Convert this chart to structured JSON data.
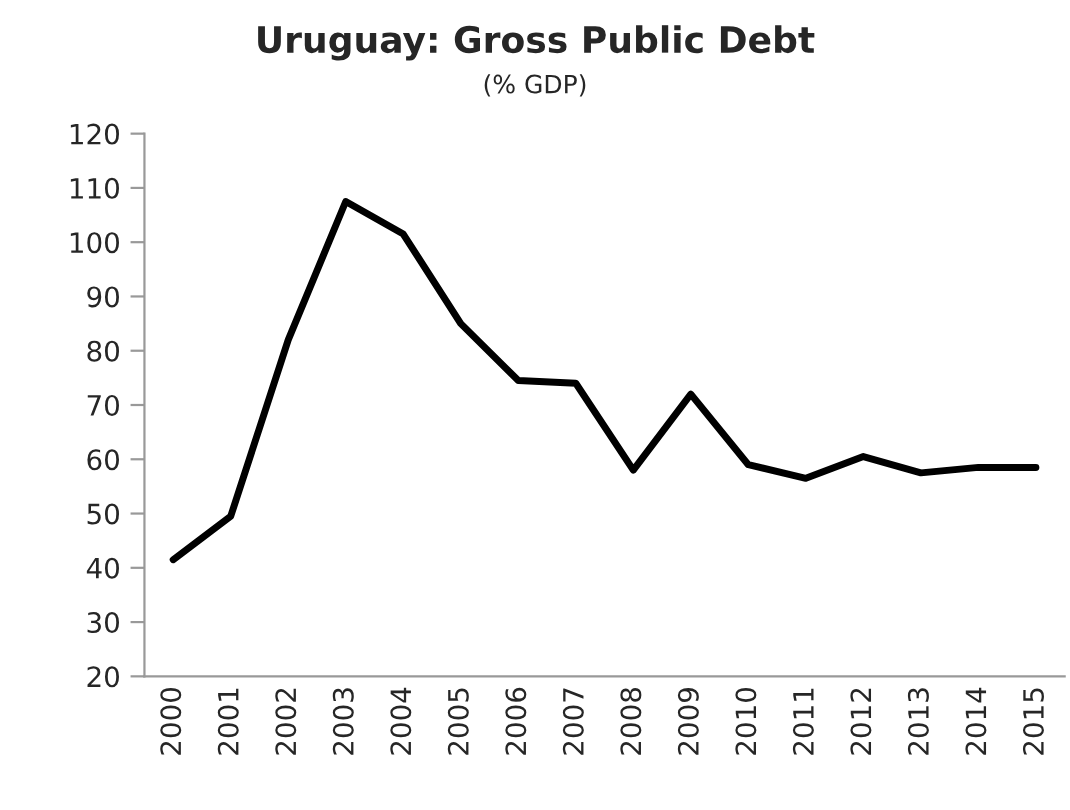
{
  "chart_data": {
    "type": "line",
    "title": "Uruguay: Gross Public Debt",
    "subtitle": "(% GDP)",
    "categories": [
      "2000",
      "2001",
      "2002",
      "2003",
      "2004",
      "2005",
      "2006",
      "2007",
      "2008",
      "2009",
      "2010",
      "2011",
      "2012",
      "2013",
      "2014",
      "2015"
    ],
    "series": [
      {
        "color": "#000000",
        "values": [
          41.5,
          49.5,
          82,
          107.5,
          101.5,
          85,
          74.5,
          74,
          58,
          72,
          59,
          56.5,
          60.5,
          57.5,
          58.5,
          58.5
        ]
      }
    ],
    "ylim": [
      20,
      120
    ],
    "yticks": [
      20,
      30,
      40,
      50,
      60,
      70,
      80,
      90,
      100,
      110,
      120
    ],
    "grid": false,
    "legend": false,
    "marker": "none",
    "line_style": "solid"
  }
}
